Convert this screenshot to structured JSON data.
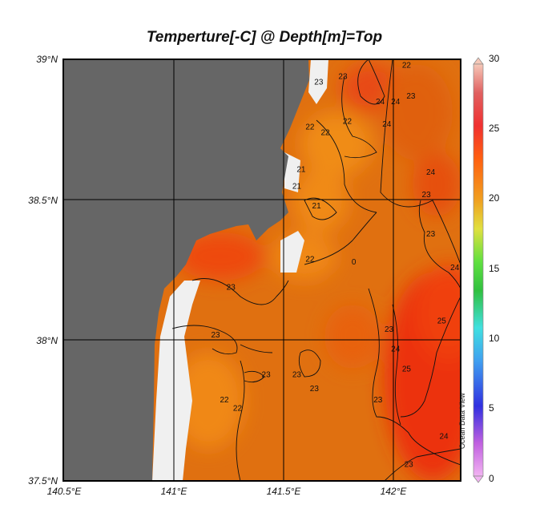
{
  "title": "Temperture[-C] @ Depth[m]=Top",
  "credit": "Ocean Data View",
  "chart_data": {
    "type": "heatmap",
    "title": "Temperture[-C] @ Depth[m]=Top",
    "x_ticks": [
      "140.5°E",
      "141°E",
      "141.5°E",
      "142°E"
    ],
    "y_ticks": [
      "39°N",
      "38.5°N",
      "38°N",
      "37.5°N"
    ],
    "xlim": [
      140.5,
      142.3
    ],
    "ylim": [
      37.5,
      39.0
    ],
    "colorbar": {
      "range": [
        0,
        30
      ],
      "ticks": [
        "30",
        "25",
        "20",
        "15",
        "10",
        "5",
        "0"
      ]
    },
    "contour_labels": [
      {
        "text": "22",
        "lon": 141.62,
        "lat": 38.75
      },
      {
        "text": "22",
        "lon": 141.69,
        "lat": 38.73
      },
      {
        "text": "22",
        "lon": 141.79,
        "lat": 38.77
      },
      {
        "text": "22",
        "lon": 141.62,
        "lat": 38.28
      },
      {
        "text": "22",
        "lon": 141.23,
        "lat": 37.78
      },
      {
        "text": "22",
        "lon": 141.29,
        "lat": 37.75
      },
      {
        "text": "22",
        "lon": 142.06,
        "lat": 38.97
      },
      {
        "text": "23",
        "lon": 141.77,
        "lat": 38.93
      },
      {
        "text": "23",
        "lon": 142.08,
        "lat": 38.86
      },
      {
        "text": "23",
        "lon": 141.66,
        "lat": 38.91
      },
      {
        "text": "23",
        "lon": 142.15,
        "lat": 38.51
      },
      {
        "text": "23",
        "lon": 142.17,
        "lat": 38.37
      },
      {
        "text": "23",
        "lon": 141.26,
        "lat": 38.18
      },
      {
        "text": "23",
        "lon": 141.19,
        "lat": 38.01
      },
      {
        "text": "23",
        "lon": 141.42,
        "lat": 37.87
      },
      {
        "text": "23",
        "lon": 141.56,
        "lat": 37.87
      },
      {
        "text": "23",
        "lon": 141.64,
        "lat": 37.82
      },
      {
        "text": "23",
        "lon": 141.93,
        "lat": 37.78
      },
      {
        "text": "23",
        "lon": 141.98,
        "lat": 38.03
      },
      {
        "text": "23",
        "lon": 142.07,
        "lat": 37.55
      },
      {
        "text": "24",
        "lon": 141.94,
        "lat": 38.84
      },
      {
        "text": "24",
        "lon": 142.01,
        "lat": 38.84
      },
      {
        "text": "24",
        "lon": 141.97,
        "lat": 38.76
      },
      {
        "text": "24",
        "lon": 142.17,
        "lat": 38.59
      },
      {
        "text": "24",
        "lon": 142.28,
        "lat": 38.25
      },
      {
        "text": "24",
        "lon": 142.01,
        "lat": 37.96
      },
      {
        "text": "24",
        "lon": 142.23,
        "lat": 37.65
      },
      {
        "text": "25",
        "lon": 142.22,
        "lat": 38.06
      },
      {
        "text": "25",
        "lon": 142.06,
        "lat": 37.89
      },
      {
        "text": "21",
        "lon": 141.56,
        "lat": 38.54
      },
      {
        "text": "21",
        "lon": 141.65,
        "lat": 38.47
      },
      {
        "text": "21",
        "lon": 141.58,
        "lat": 38.6
      },
      {
        "text": "0",
        "lon": 141.82,
        "lat": 38.27
      }
    ]
  }
}
